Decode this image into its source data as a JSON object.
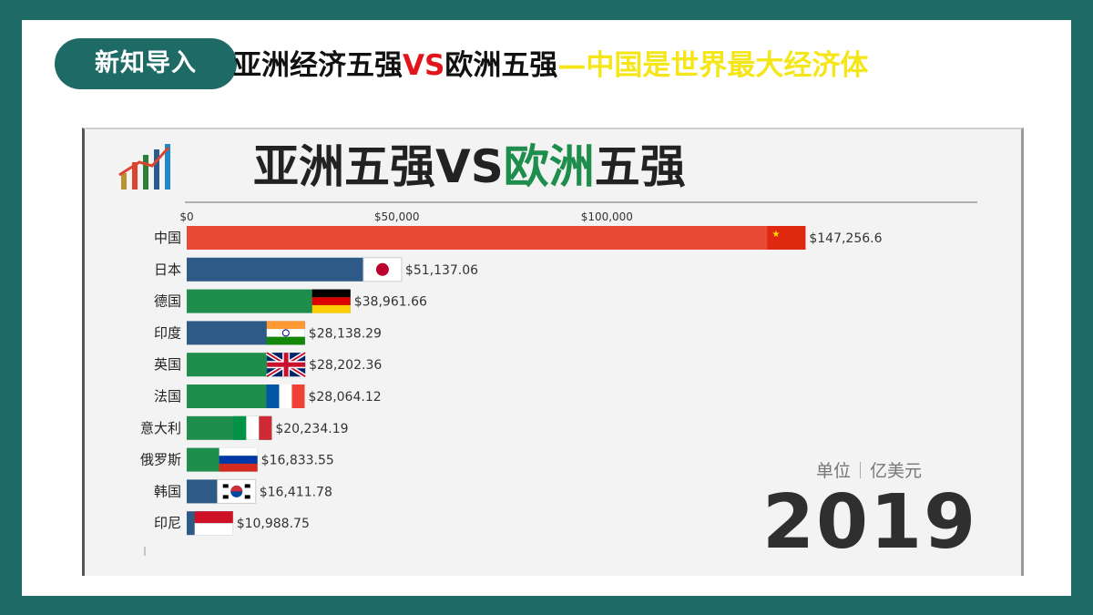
{
  "slide": {
    "badge": "新知导入",
    "title_part1": "亚洲经济五强",
    "title_vs": "VS",
    "title_part2": "欧洲五强",
    "title_part3": "—中国是世界最大经济体"
  },
  "chart_data": {
    "type": "bar",
    "orientation": "horizontal",
    "title_part1": "亚洲五强VS",
    "title_part2": "欧洲",
    "title_part3": "五强",
    "year": "2019",
    "unit_label": "单位",
    "unit_value": "亿美元",
    "xlim": [
      0,
      150000
    ],
    "x_ticks": [
      0,
      50000,
      100000
    ],
    "x_tick_labels": [
      "$0",
      "$50,000",
      "$100,000"
    ],
    "colors": {
      "china": "#e84a36",
      "asia": "#2e5a87",
      "europe": "#1f8e4d"
    },
    "categories": [
      "中国",
      "日本",
      "德国",
      "印度",
      "英国",
      "法国",
      "意大利",
      "俄罗斯",
      "韩国",
      "印尼"
    ],
    "values": [
      147256.6,
      51137.06,
      38961.66,
      28138.29,
      28202.36,
      28064.12,
      20234.19,
      16833.55,
      16411.78,
      10988.75
    ],
    "value_labels": [
      "$147,256.6",
      "$51,137.06",
      "$38,961.66",
      "$28,138.29",
      "$28,202.36",
      "$28,064.12",
      "$20,234.19",
      "$16,833.55",
      "$16,411.78",
      "$10,988.75"
    ],
    "groups": [
      "china",
      "asia",
      "europe",
      "asia",
      "europe",
      "europe",
      "europe",
      "europe",
      "asia",
      "asia"
    ],
    "flags": [
      "china-flag-icon",
      "japan-flag-icon",
      "germany-flag-icon",
      "india-flag-icon",
      "uk-flag-icon",
      "france-flag-icon",
      "italy-flag-icon",
      "russia-flag-icon",
      "korea-flag-icon",
      "indonesia-flag-icon"
    ]
  }
}
